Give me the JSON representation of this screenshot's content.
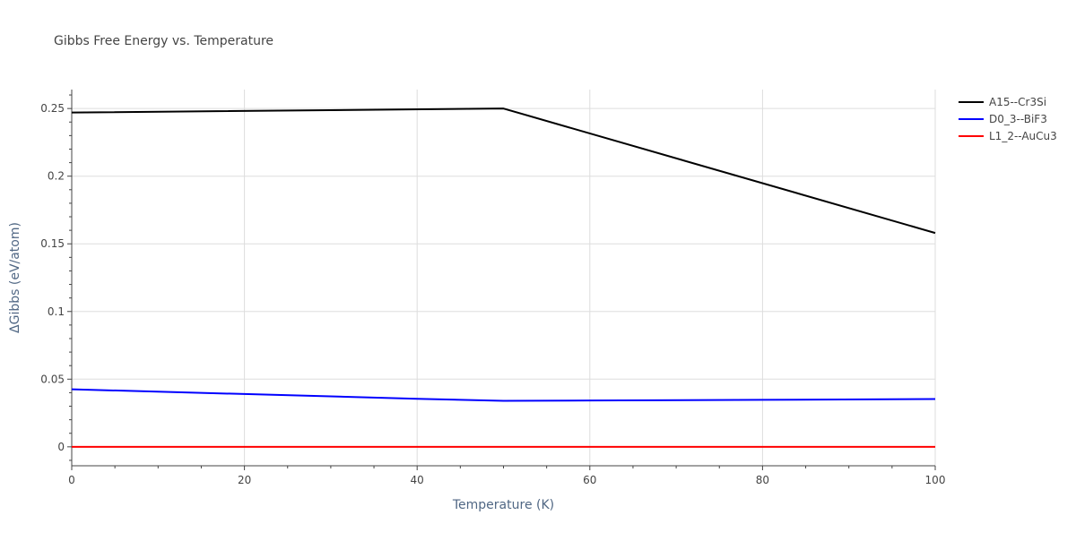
{
  "chart_data": {
    "type": "line",
    "title": "Gibbs Free Energy vs. Temperature",
    "xlabel": "Temperature (K)",
    "ylabel": "ΔGibbs (eV/atom)",
    "xlim": [
      0,
      100
    ],
    "ylim": [
      -0.014,
      0.264
    ],
    "x_ticks": [
      0,
      20,
      40,
      60,
      80,
      100
    ],
    "x_tick_labels": [
      "0",
      "20",
      "40",
      "60",
      "80",
      "100"
    ],
    "y_ticks": [
      0,
      0.05,
      0.1,
      0.15,
      0.2,
      0.25
    ],
    "y_tick_labels": [
      "0",
      "0.05",
      "0.1",
      "0.15",
      "0.2",
      "0.25"
    ],
    "grid": true,
    "legend_position": "top-right",
    "series": [
      {
        "name": "A15--Cr3Si",
        "color": "#000000",
        "x": [
          0,
          50,
          100
        ],
        "y": [
          0.247,
          0.25,
          0.158
        ]
      },
      {
        "name": "D0_3--BiF3",
        "color": "#0000ff",
        "x": [
          0,
          20,
          40,
          50,
          60,
          80,
          100
        ],
        "y": [
          0.0425,
          0.039,
          0.0355,
          0.034,
          0.0342,
          0.0347,
          0.0353
        ]
      },
      {
        "name": "L1_2--AuCu3",
        "color": "#ff0000",
        "x": [
          0,
          100
        ],
        "y": [
          0,
          0
        ]
      }
    ],
    "colors": {
      "text": "#444444",
      "axis_text": "#506784",
      "grid": "#dddddd",
      "axis_line": "#444444"
    }
  }
}
